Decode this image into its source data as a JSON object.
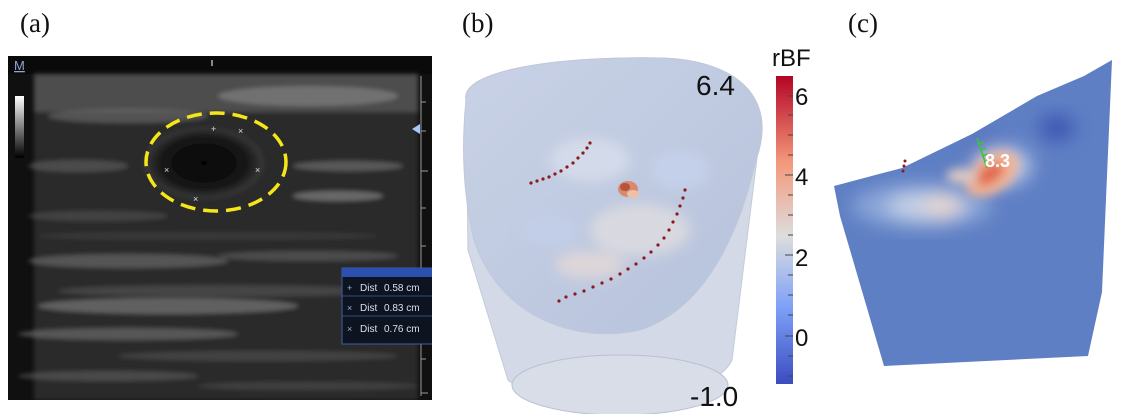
{
  "panels": {
    "a": {
      "label": "(a)",
      "corner_marker": "M",
      "measurements": [
        {
          "name": "Dist",
          "value": "0.58 cm"
        },
        {
          "name": "Dist",
          "value": "0.83 cm"
        },
        {
          "name": "Dist",
          "value": "0.76 cm"
        }
      ],
      "highlight_color": "#f5e61a"
    },
    "b": {
      "label": "(b)",
      "max_value_label": "6.4",
      "min_value_label": "-1.0"
    },
    "c": {
      "label": "(c)",
      "annotation_value": "8.3"
    }
  },
  "colorbar": {
    "title": "rBF",
    "ticks": [
      "6",
      "4",
      "2",
      "0"
    ],
    "colormap": "coolwarm",
    "low_color": "#3b4cc0",
    "mid_color": "#dddddd",
    "high_color": "#b40426"
  }
}
